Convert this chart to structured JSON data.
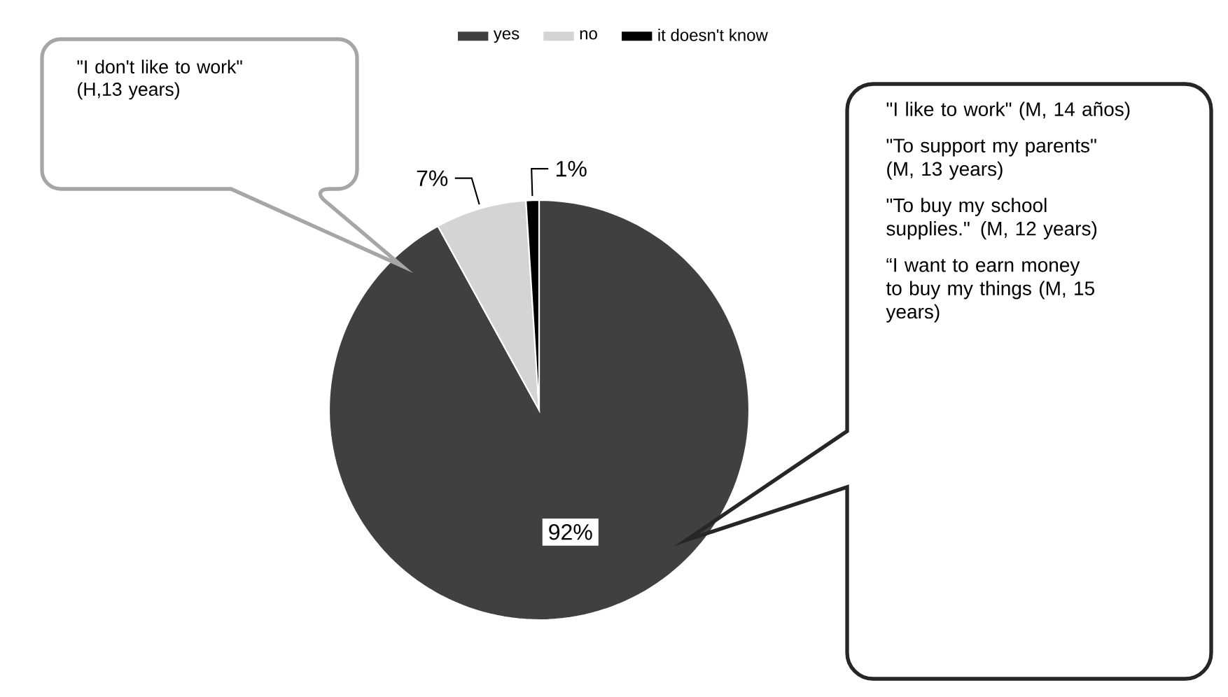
{
  "chart_data": {
    "type": "pie",
    "categories": [
      "yes",
      "no",
      "it doesn't know"
    ],
    "values": [
      92,
      7,
      1
    ],
    "colors": [
      "#404040",
      "#d4d4d4",
      "#000000"
    ],
    "value_labels": [
      "92%",
      "7%",
      "1%"
    ],
    "legend": "top",
    "annotations": [
      "\"I don't like to work\" (H,13 years)",
      "\"I like to work\" (M, 14 años)",
      "\"To support my parents\" (M, 13 years)",
      "\"To buy my school supplies.\" (M, 12 years)",
      "“I want to earn money to buy my things (M, 15 years)"
    ]
  }
}
